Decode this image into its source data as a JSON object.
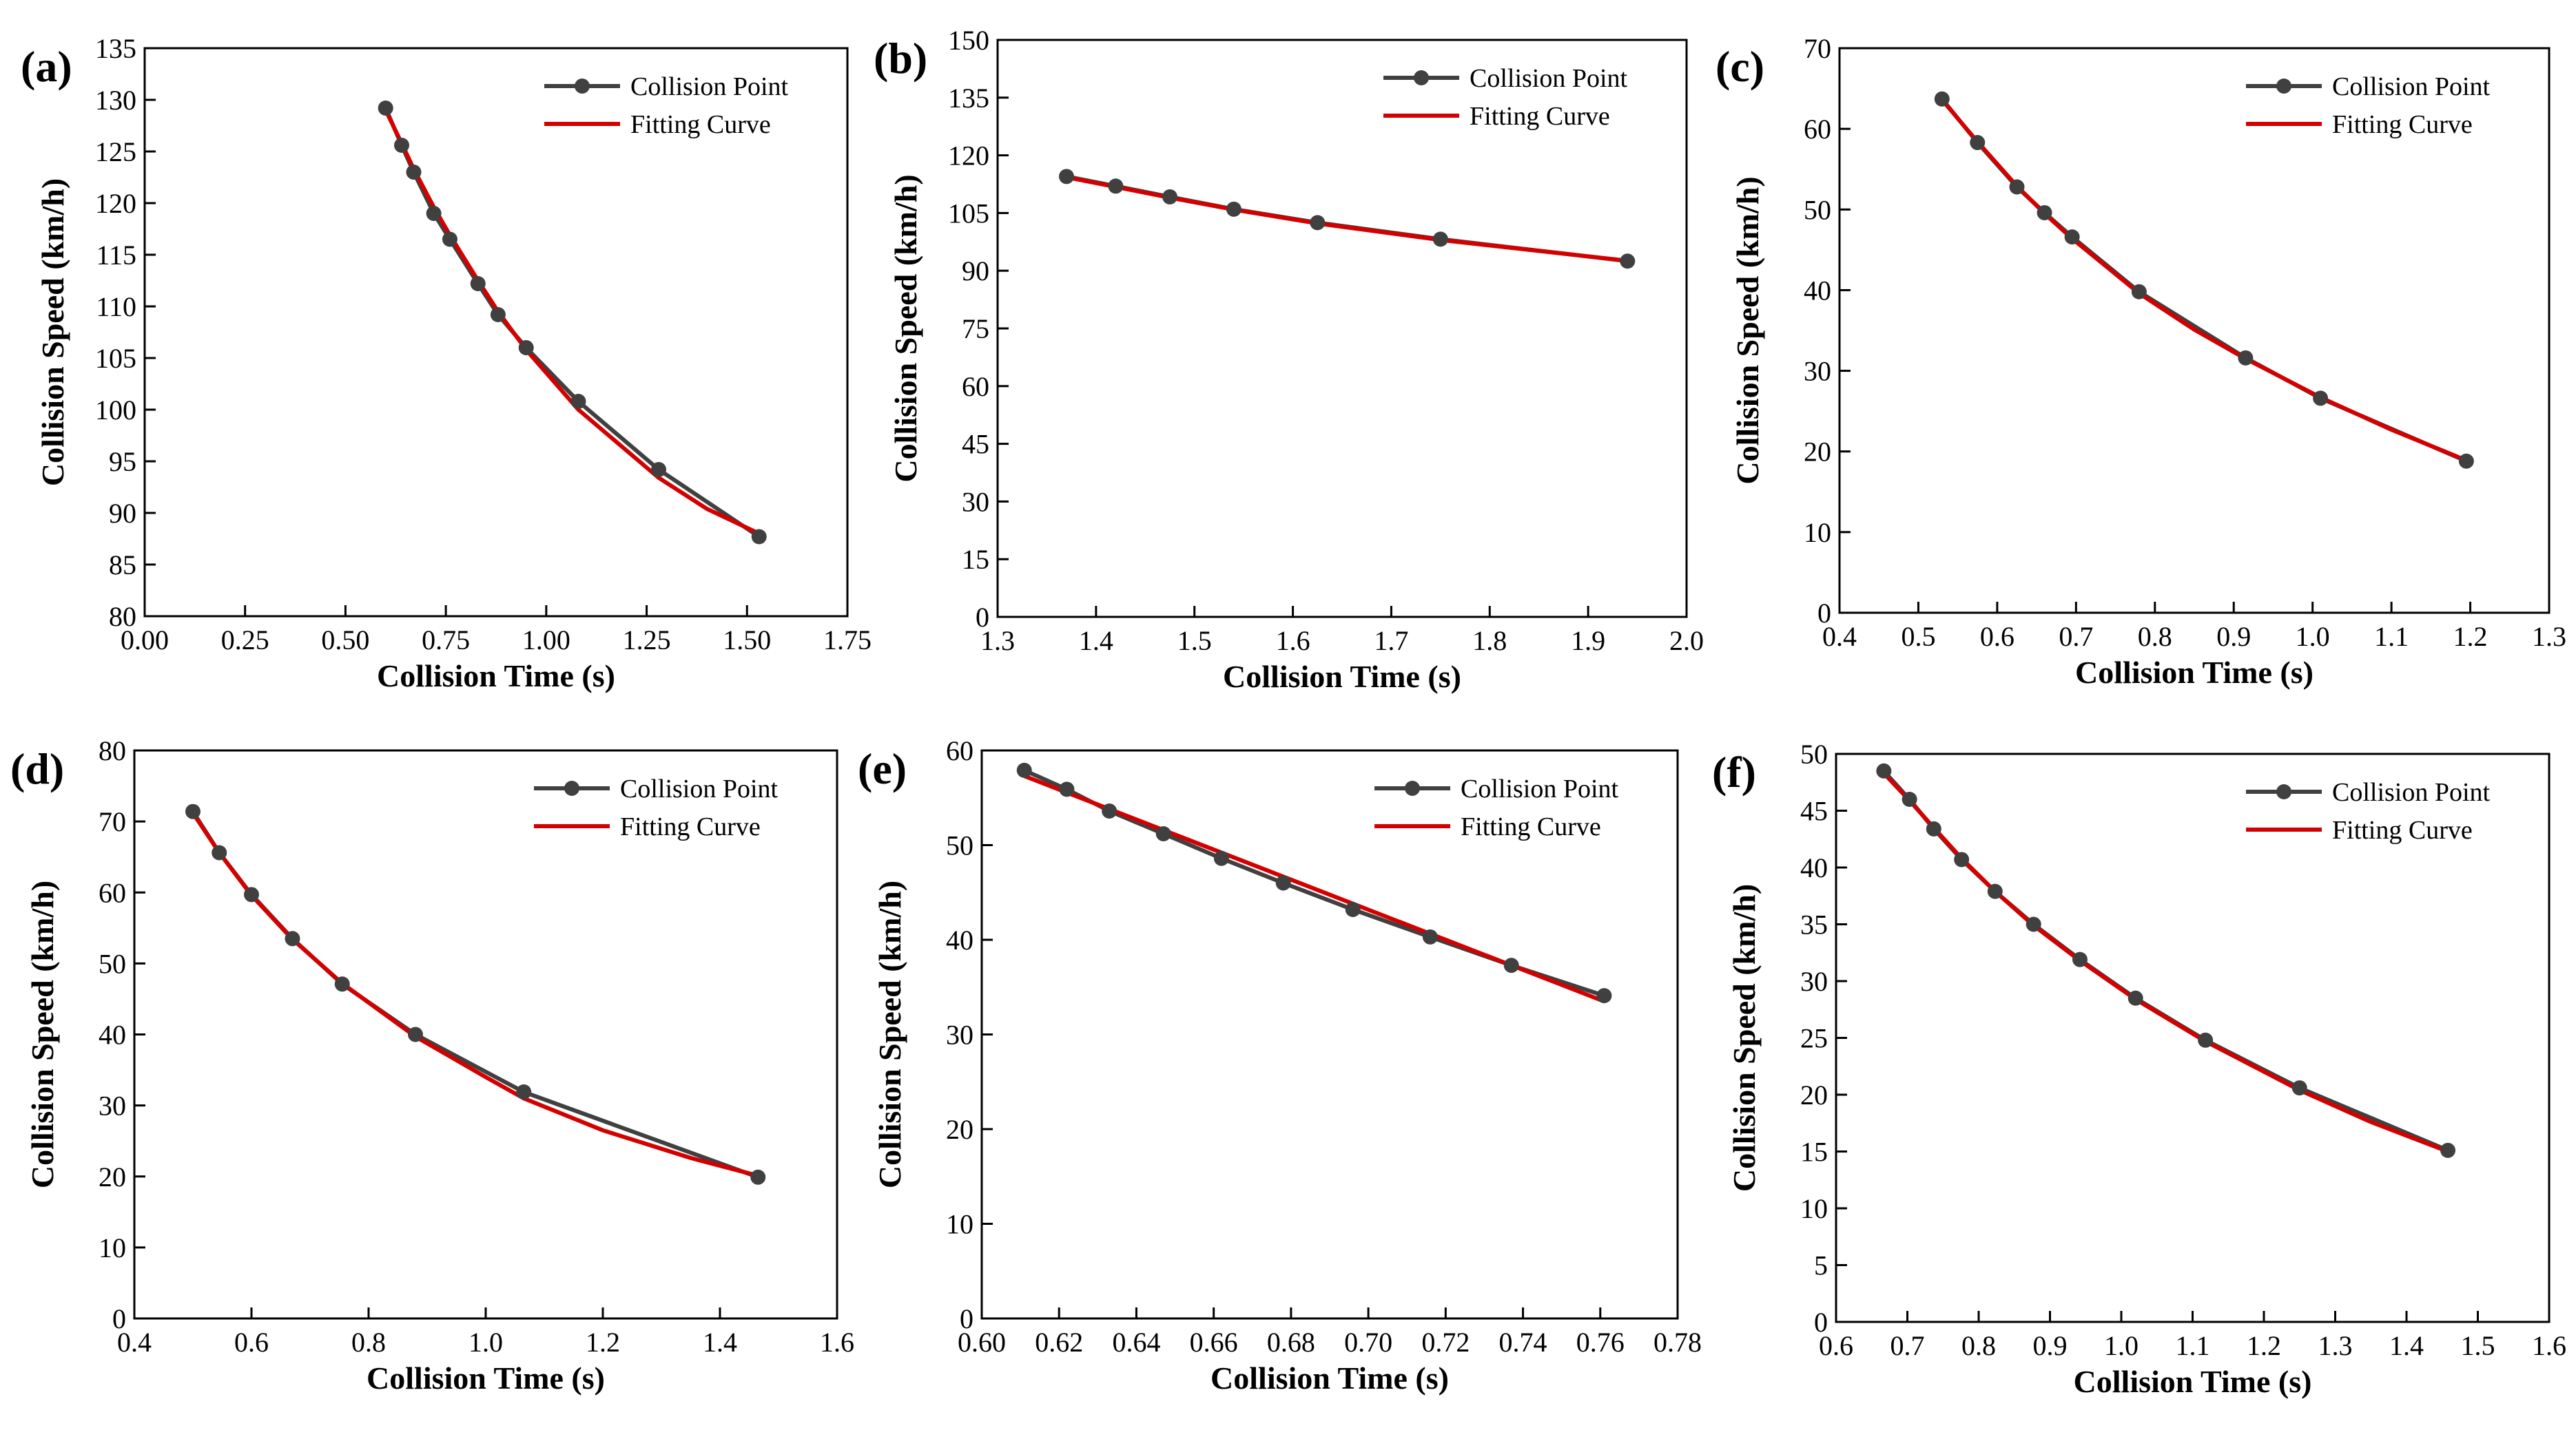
{
  "figure": {
    "colors": {
      "point_series": "#404040",
      "fit_series": "#d40000",
      "axis": "#000000"
    },
    "legend": {
      "point_label": "Collision Point",
      "fit_label": "Fitting Curve",
      "placement": "top-right"
    }
  },
  "chart_data": [
    {
      "id": "a",
      "panel_label": "(a)",
      "type": "line",
      "xlabel": "Collision Time (s)",
      "ylabel": "Collision Speed (km/h)",
      "xlim": [
        0.0,
        1.75
      ],
      "ylim": [
        80,
        135
      ],
      "xticks": [
        "0.00",
        "0.25",
        "0.50",
        "0.75",
        "1.00",
        "1.25",
        "1.50",
        "1.75"
      ],
      "yticks": [
        "80",
        "85",
        "90",
        "95",
        "100",
        "105",
        "110",
        "115",
        "120",
        "125",
        "130",
        "135"
      ],
      "series": [
        {
          "name": "Collision Point",
          "marker": "circle",
          "x": [
            0.6,
            0.64,
            0.67,
            0.72,
            0.76,
            0.83,
            0.88,
            0.95,
            1.08,
            1.28,
            1.53
          ],
          "y": [
            129.2,
            125.6,
            123.0,
            119.0,
            116.5,
            112.2,
            109.2,
            106.0,
            100.8,
            94.2,
            87.7
          ]
        },
        {
          "name": "Fitting Curve",
          "x": [
            0.6,
            0.64,
            0.67,
            0.72,
            0.76,
            0.83,
            0.88,
            0.95,
            1.08,
            1.28,
            1.4,
            1.53
          ],
          "y": [
            129.0,
            125.8,
            123.3,
            119.6,
            116.9,
            112.5,
            109.5,
            105.8,
            100.0,
            93.4,
            90.4,
            88.0
          ]
        }
      ]
    },
    {
      "id": "b",
      "panel_label": "(b)",
      "type": "line",
      "xlabel": "Collision Time (s)",
      "ylabel": "Collision Speed (km/h)",
      "xlim": [
        1.3,
        2.0
      ],
      "ylim": [
        0,
        150
      ],
      "xticks": [
        "1.3",
        "1.4",
        "1.5",
        "1.6",
        "1.7",
        "1.8",
        "1.9",
        "2.0"
      ],
      "yticks": [
        "0",
        "15",
        "30",
        "45",
        "60",
        "75",
        "90",
        "105",
        "120",
        "135",
        "150"
      ],
      "series": [
        {
          "name": "Collision Point",
          "marker": "circle",
          "x": [
            1.37,
            1.42,
            1.475,
            1.54,
            1.625,
            1.75,
            1.94
          ],
          "y": [
            114.5,
            112.0,
            109.2,
            106.0,
            102.5,
            98.2,
            92.5
          ]
        },
        {
          "name": "Fitting Curve",
          "x": [
            1.37,
            1.42,
            1.475,
            1.54,
            1.625,
            1.75,
            1.94
          ],
          "y": [
            114.3,
            111.8,
            109.0,
            105.9,
            102.3,
            98.0,
            92.6
          ]
        }
      ]
    },
    {
      "id": "c",
      "panel_label": "(c)",
      "type": "line",
      "xlabel": "Collision Time (s)",
      "ylabel": "Collision Speed (km/h)",
      "xlim": [
        0.4,
        1.3
      ],
      "ylim": [
        0,
        70
      ],
      "xticks": [
        "0.4",
        "0.5",
        "0.6",
        "0.7",
        "0.8",
        "0.9",
        "1.0",
        "1.1",
        "1.2",
        "1.3"
      ],
      "yticks": [
        "0",
        "10",
        "20",
        "30",
        "40",
        "50",
        "60",
        "70"
      ],
      "series": [
        {
          "name": "Collision Point",
          "marker": "circle",
          "x": [
            0.53,
            0.575,
            0.625,
            0.66,
            0.695,
            0.78,
            0.915,
            1.01,
            1.195
          ],
          "y": [
            63.7,
            58.3,
            52.8,
            49.6,
            46.6,
            39.8,
            31.6,
            26.6,
            18.8
          ]
        },
        {
          "name": "Fitting Curve",
          "x": [
            0.53,
            0.575,
            0.625,
            0.66,
            0.695,
            0.78,
            0.85,
            0.915,
            1.01,
            1.1,
            1.195
          ],
          "y": [
            63.6,
            58.4,
            52.9,
            49.5,
            46.4,
            39.6,
            35.1,
            31.5,
            26.7,
            22.7,
            18.9
          ]
        }
      ]
    },
    {
      "id": "d",
      "panel_label": "(d)",
      "type": "line",
      "xlabel": "Collision Time (s)",
      "ylabel": "Collision Speed (km/h)",
      "xlim": [
        0.4,
        1.6
      ],
      "ylim": [
        0,
        80
      ],
      "xticks": [
        "0.4",
        "0.6",
        "0.8",
        "1.0",
        "1.2",
        "1.4",
        "1.6"
      ],
      "yticks": [
        "0",
        "10",
        "20",
        "30",
        "40",
        "50",
        "60",
        "70",
        "80"
      ],
      "series": [
        {
          "name": "Collision Point",
          "marker": "circle",
          "x": [
            0.5,
            0.545,
            0.6,
            0.67,
            0.755,
            0.88,
            1.065,
            1.465
          ],
          "y": [
            71.4,
            65.6,
            59.7,
            53.5,
            47.1,
            40.0,
            31.9,
            19.9
          ]
        },
        {
          "name": "Fitting Curve",
          "x": [
            0.5,
            0.545,
            0.6,
            0.67,
            0.755,
            0.88,
            1.0,
            1.065,
            1.2,
            1.35,
            1.465
          ],
          "y": [
            71.2,
            65.6,
            59.6,
            53.4,
            47.2,
            39.7,
            34.0,
            31.0,
            26.5,
            22.6,
            20.1
          ]
        }
      ]
    },
    {
      "id": "e",
      "panel_label": "(e)",
      "type": "line",
      "xlabel": "Collision Time (s)",
      "ylabel": "Collision Speed (km/h)",
      "xlim": [
        0.6,
        0.78
      ],
      "ylim": [
        0,
        60
      ],
      "xticks": [
        "0.60",
        "0.62",
        "0.64",
        "0.66",
        "0.68",
        "0.70",
        "0.72",
        "0.74",
        "0.76",
        "0.78"
      ],
      "yticks": [
        "0",
        "10",
        "20",
        "30",
        "40",
        "50",
        "60"
      ],
      "series": [
        {
          "name": "Collision Point",
          "marker": "circle",
          "x": [
            0.611,
            0.622,
            0.633,
            0.647,
            0.662,
            0.678,
            0.696,
            0.716,
            0.737,
            0.761
          ],
          "y": [
            57.9,
            55.9,
            53.6,
            51.2,
            48.6,
            46.0,
            43.2,
            40.3,
            37.3,
            34.1
          ]
        },
        {
          "name": "Fitting Curve",
          "x": [
            0.611,
            0.761
          ],
          "y": [
            57.3,
            33.5
          ]
        }
      ]
    },
    {
      "id": "f",
      "panel_label": "(f)",
      "type": "line",
      "xlabel": "Collision Time (s)",
      "ylabel": "Collision Speed (km/h)",
      "xlim": [
        0.6,
        1.6
      ],
      "ylim": [
        0,
        50
      ],
      "xticks": [
        "0.6",
        "0.7",
        "0.8",
        "0.9",
        "1.0",
        "1.1",
        "1.2",
        "1.3",
        "1.4",
        "1.5",
        "1.6"
      ],
      "yticks": [
        "0",
        "5",
        "10",
        "15",
        "20",
        "25",
        "30",
        "35",
        "40",
        "45",
        "50"
      ],
      "series": [
        {
          "name": "Collision Point",
          "marker": "circle",
          "x": [
            0.667,
            0.703,
            0.737,
            0.776,
            0.823,
            0.877,
            0.942,
            1.02,
            1.118,
            1.25,
            1.458
          ],
          "y": [
            48.5,
            46.0,
            43.4,
            40.7,
            37.9,
            35.0,
            31.9,
            28.5,
            24.8,
            20.6,
            15.1
          ]
        },
        {
          "name": "Fitting Curve",
          "x": [
            0.667,
            0.703,
            0.737,
            0.776,
            0.823,
            0.877,
            0.942,
            1.02,
            1.118,
            1.25,
            1.35,
            1.458
          ],
          "y": [
            48.3,
            45.9,
            43.5,
            40.8,
            37.9,
            34.9,
            31.8,
            28.4,
            24.7,
            20.4,
            17.6,
            15.0
          ]
        }
      ]
    }
  ]
}
